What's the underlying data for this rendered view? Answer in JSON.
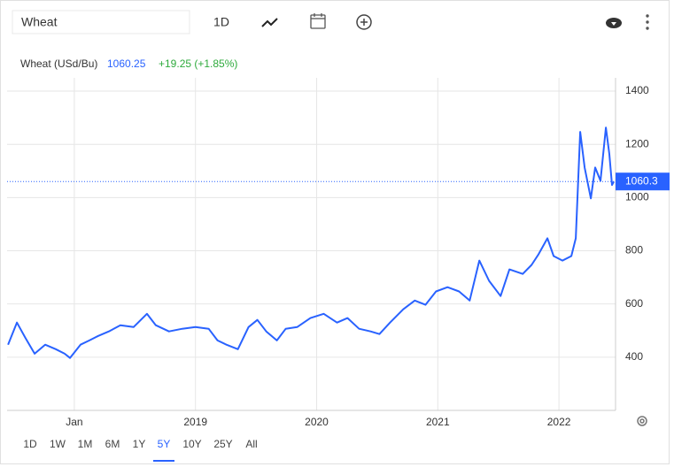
{
  "toolbar": {
    "search": "Wheat",
    "interval": "1D"
  },
  "chart_data": {
    "type": "line",
    "x": [
      2017.453,
      2017.526,
      2017.599,
      2017.672,
      2017.759,
      2017.847,
      2017.92,
      2017.964,
      2018.051,
      2018.124,
      2018.197,
      2018.285,
      2018.38,
      2018.489,
      2018.599,
      2018.672,
      2018.781,
      2018.891,
      2019.0,
      2019.109,
      2019.182,
      2019.255,
      2019.35,
      2019.438,
      2019.511,
      2019.584,
      2019.672,
      2019.745,
      2019.839,
      2019.949,
      2020.058,
      2020.168,
      2020.255,
      2020.35,
      2020.445,
      2020.518,
      2020.606,
      2020.715,
      2020.81,
      2020.898,
      2020.985,
      2021.08,
      2021.175,
      2021.263,
      2021.343,
      2021.423,
      2021.518,
      2021.591,
      2021.701,
      2021.774,
      2021.832,
      2021.905,
      2021.956,
      2022.029,
      2022.102,
      2022.139,
      2022.175,
      2022.212,
      2022.263,
      2022.299,
      2022.343,
      2022.387,
      2022.416,
      2022.438,
      2022.453
    ],
    "series": [
      {
        "name": "Wheat (USd/Bu)",
        "color": "#2962ff",
        "values": [
          447,
          530,
          470,
          413,
          447,
          430,
          413,
          397,
          447,
          463,
          480,
          497,
          520,
          513,
          563,
          520,
          497,
          507,
          513,
          507,
          463,
          447,
          430,
          513,
          540,
          497,
          463,
          507,
          513,
          547,
          563,
          530,
          547,
          507,
          497,
          487,
          530,
          580,
          613,
          597,
          647,
          663,
          647,
          613,
          763,
          687,
          630,
          730,
          713,
          747,
          787,
          847,
          780,
          763,
          780,
          847,
          1247,
          1113,
          997,
          1113,
          1063,
          1263,
          1163,
          1047,
          1060
        ]
      }
    ],
    "last": 1060.25,
    "change_label": "+19.25 (+1.85%)",
    "price_line": 1060.3,
    "xlim": [
      2017.445,
      2022.467
    ],
    "xticks": [
      {
        "value": 2018,
        "label": "Jan"
      },
      2019,
      2020,
      2021,
      2022
    ],
    "ylim": [
      200,
      1450
    ],
    "yticks": [
      400,
      600,
      800,
      1000,
      1200,
      1400
    ],
    "grid": true
  },
  "ranges": [
    "1D",
    "1W",
    "1M",
    "6M",
    "1Y",
    "5Y",
    "10Y",
    "25Y",
    "All"
  ],
  "selected_range": 5
}
